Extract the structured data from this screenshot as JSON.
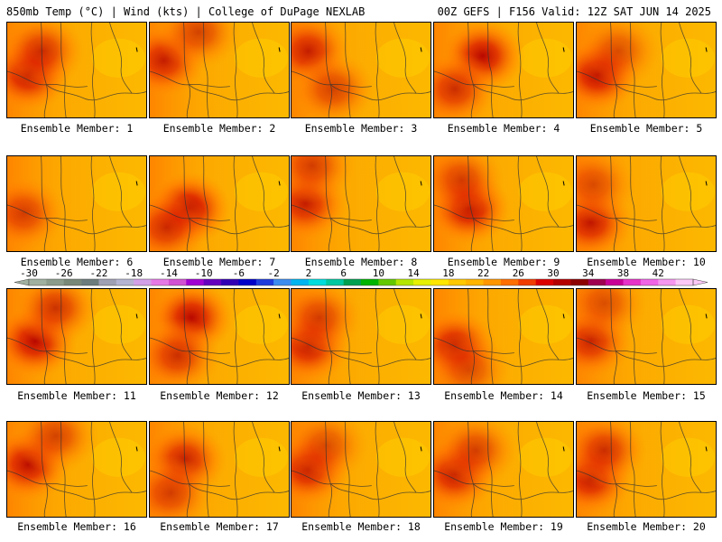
{
  "header": {
    "left": "850mb Temp (°C) | Wind (kts) | College of DuPage NEXLAB",
    "right": "00Z GEFS | F156 Valid: 12Z SAT JUN 14 2025"
  },
  "members": [
    {
      "label": "Ensemble Member: 1",
      "hot": [
        [
          0.15,
          0.55,
          0.9
        ],
        [
          0.25,
          0.3,
          0.7
        ]
      ]
    },
    {
      "label": "Ensemble Member: 2",
      "hot": [
        [
          0.1,
          0.4,
          0.8
        ],
        [
          0.35,
          0.1,
          0.6
        ]
      ]
    },
    {
      "label": "Ensemble Member: 3",
      "hot": [
        [
          0.12,
          0.3,
          0.8
        ],
        [
          0.3,
          0.7,
          0.6
        ]
      ]
    },
    {
      "label": "Ensemble Member: 4",
      "hot": [
        [
          0.35,
          0.35,
          0.95
        ],
        [
          0.15,
          0.7,
          0.7
        ]
      ]
    },
    {
      "label": "Ensemble Member: 5",
      "hot": [
        [
          0.15,
          0.55,
          0.95
        ],
        [
          0.3,
          0.3,
          0.5
        ]
      ]
    },
    {
      "label": "Ensemble Member: 6",
      "hot": [
        [
          0.12,
          0.6,
          0.6
        ]
      ]
    },
    {
      "label": "Ensemble Member: 7",
      "hot": [
        [
          0.28,
          0.55,
          1.0
        ],
        [
          0.12,
          0.75,
          0.7
        ]
      ]
    },
    {
      "label": "Ensemble Member: 8",
      "hot": [
        [
          0.1,
          0.5,
          0.8
        ],
        [
          0.15,
          0.1,
          0.6
        ]
      ]
    },
    {
      "label": "Ensemble Member: 9",
      "hot": [
        [
          0.25,
          0.55,
          0.95
        ],
        [
          0.2,
          0.25,
          0.6
        ]
      ]
    },
    {
      "label": "Ensemble Member: 10",
      "hot": [
        [
          0.1,
          0.7,
          0.85
        ],
        [
          0.12,
          0.3,
          0.5
        ]
      ]
    },
    {
      "label": "Ensemble Member: 11",
      "hot": [
        [
          0.2,
          0.55,
          0.95
        ],
        [
          0.35,
          0.2,
          0.7
        ]
      ]
    },
    {
      "label": "Ensemble Member: 12",
      "hot": [
        [
          0.3,
          0.3,
          0.95
        ],
        [
          0.2,
          0.7,
          0.7
        ]
      ]
    },
    {
      "label": "Ensemble Member: 13",
      "hot": [
        [
          0.12,
          0.6,
          0.85
        ],
        [
          0.2,
          0.3,
          0.6
        ]
      ]
    },
    {
      "label": "Ensemble Member: 14",
      "hot": [
        [
          0.15,
          0.6,
          0.85
        ],
        [
          0.25,
          0.85,
          0.5
        ]
      ]
    },
    {
      "label": "Ensemble Member: 15",
      "hot": [
        [
          0.1,
          0.55,
          0.75
        ],
        [
          0.2,
          0.15,
          0.5
        ]
      ]
    },
    {
      "label": "Ensemble Member: 16",
      "hot": [
        [
          0.15,
          0.45,
          0.9
        ],
        [
          0.35,
          0.15,
          0.6
        ]
      ]
    },
    {
      "label": "Ensemble Member: 17",
      "hot": [
        [
          0.25,
          0.4,
          0.8
        ],
        [
          0.15,
          0.75,
          0.6
        ]
      ]
    },
    {
      "label": "Ensemble Member: 18",
      "hot": [
        [
          0.12,
          0.5,
          0.85
        ],
        [
          0.25,
          0.25,
          0.5
        ]
      ]
    },
    {
      "label": "Ensemble Member: 19",
      "hot": [
        [
          0.15,
          0.55,
          0.85
        ],
        [
          0.3,
          0.3,
          0.6
        ]
      ]
    },
    {
      "label": "Ensemble Member: 20",
      "hot": [
        [
          0.1,
          0.6,
          0.85
        ],
        [
          0.2,
          0.3,
          0.7
        ]
      ]
    }
  ],
  "colorbar": {
    "labels": [
      "-30",
      "-26",
      "-22",
      "-18",
      "-14",
      "-10",
      "-6",
      "-2",
      "2",
      "6",
      "10",
      "14",
      "18",
      "22",
      "26",
      "30",
      "34",
      "38",
      "42"
    ],
    "colors": [
      "#a0b0a0",
      "#8c9c8c",
      "#788878",
      "#6c7c7c",
      "#a0a0b4",
      "#b4b4d2",
      "#d2a0e6",
      "#e678e6",
      "#d250d2",
      "#a000d2",
      "#6400be",
      "#3200b4",
      "#0000c8",
      "#1e3cdc",
      "#3c8cf0",
      "#00b4f0",
      "#00dcdc",
      "#00c8a0",
      "#00a050",
      "#00b400",
      "#64c800",
      "#b4e600",
      "#e6f000",
      "#ffe600",
      "#ffc800",
      "#ffb400",
      "#ff9600",
      "#ff6e00",
      "#f03c00",
      "#dc0000",
      "#b40000",
      "#8c0000",
      "#a00050",
      "#c80096",
      "#e632c8",
      "#f064e6",
      "#f696f0",
      "#fcc8f8"
    ]
  }
}
